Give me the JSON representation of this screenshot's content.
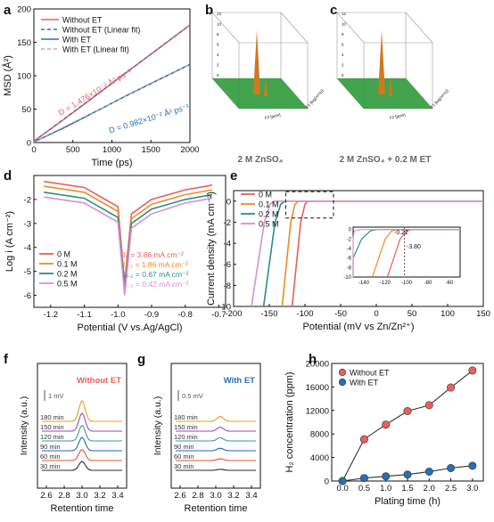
{
  "panel_labels": [
    "a",
    "b",
    "c",
    "d",
    "e",
    "f",
    "g",
    "h"
  ],
  "colors": {
    "red": "#e8605e",
    "blue": "#2a6fb0",
    "orange": "#ee8a2a",
    "teal": "#2f8a8a",
    "pink": "#d493cf",
    "green": "#2e9a3a",
    "peak": "#d0781e",
    "series_f": [
      "#2b2b2b",
      "#e0503a",
      "#2a64b0",
      "#3aa07a",
      "#9a4ab0",
      "#e0a020"
    ]
  },
  "chart_data": [
    {
      "panel": "a",
      "type": "line",
      "xlabel": "Time (ps)",
      "ylabel": "MSD (Å²)",
      "xlim": [
        0,
        2000
      ],
      "ylim": [
        0,
        200
      ],
      "xticks": [
        "0",
        "500",
        "1000",
        "1500",
        "2000"
      ],
      "yticks": [
        "0",
        "50",
        "100",
        "150",
        "200"
      ],
      "legend": [
        "Without ET",
        "Without ET (Linear fit)",
        "With ET",
        "With ET (Linear fit)"
      ],
      "annotations": [
        "D = 1.476×10⁻² Å² ps⁻¹",
        "D = 0.982×10⁻² Å² ps⁻¹"
      ],
      "series": [
        {
          "name": "Without ET",
          "x": [
            0,
            400,
            800,
            1200,
            1600,
            2000
          ],
          "y": [
            2,
            36,
            71,
            106,
            141,
            176
          ]
        },
        {
          "name": "With ET",
          "x": [
            0,
            400,
            800,
            1200,
            1600,
            2000
          ],
          "y": [
            1,
            23,
            47,
            71,
            94,
            117
          ]
        }
      ]
    },
    {
      "panel": "b",
      "type": "surface",
      "caption": "2 M ZnSO₄",
      "axes": [
        "F2 [ppm]",
        "F1 [log(m²/s)]"
      ],
      "z_ticks": [
        "0",
        "2",
        "4",
        "6",
        "8",
        "10",
        "12"
      ],
      "f2_ticks": [
        "10",
        "5",
        "0",
        "-5"
      ],
      "f1_ticks": [
        "-9",
        "-9.5",
        "-10",
        "-10.5",
        "-11"
      ]
    },
    {
      "panel": "c",
      "type": "surface",
      "caption": "2 M ZnSO₄ + 0.2 M ET",
      "axes": [
        "F2 [ppm]",
        "F1 [log(m²/s)]"
      ],
      "z_ticks": [
        "0",
        "2",
        "4",
        "6",
        "8",
        "10",
        "12"
      ],
      "f2_ticks": [
        "10",
        "5",
        "0",
        "-5",
        "-10"
      ],
      "f1_ticks": [
        "-9",
        "-9.5",
        "-10",
        "-10.5",
        "-11"
      ]
    },
    {
      "panel": "d",
      "type": "line",
      "xlabel": "Potential (V vs.Ag/AgCl)",
      "ylabel": "Log i (A cm⁻²)",
      "xlim": [
        -1.25,
        -0.68
      ],
      "ylim": [
        -6.5,
        -1.0
      ],
      "xticks": [
        "-1.2",
        "-1.1",
        "-1.0",
        "-0.9",
        "-0.8",
        "-0.7"
      ],
      "yticks": [
        "-2",
        "-3",
        "-4",
        "-5",
        "-6"
      ],
      "legend": [
        "0 M",
        "0.1 M",
        "0.2 M",
        "0.5 M"
      ],
      "annotations": [
        "I₀ = 3.86 mA cm⁻²",
        "I₀.₁ = 1.86 mA cm⁻²",
        "I₀.₂ = 0.67 mA cm⁻²",
        "I₀.₅ = 0.42 mA cm⁻²"
      ],
      "series": [
        {
          "name": "0 M",
          "x": [
            -1.22,
            -1.1,
            -1.0,
            -0.98,
            -0.96,
            -0.9,
            -0.8,
            -0.72
          ],
          "y": [
            -1.25,
            -1.5,
            -2.3,
            -5.5,
            -2.6,
            -2.0,
            -1.6,
            -1.4
          ]
        },
        {
          "name": "0.1 M",
          "x": [
            -1.22,
            -1.1,
            -1.0,
            -0.98,
            -0.96,
            -0.9,
            -0.8,
            -0.72
          ],
          "y": [
            -1.45,
            -1.7,
            -2.5,
            -5.7,
            -2.8,
            -2.2,
            -1.8,
            -1.6
          ]
        },
        {
          "name": "0.2 M",
          "x": [
            -1.22,
            -1.1,
            -1.0,
            -0.98,
            -0.96,
            -0.9,
            -0.8,
            -0.72
          ],
          "y": [
            -1.7,
            -1.95,
            -2.75,
            -5.8,
            -3.0,
            -2.4,
            -2.0,
            -1.8
          ]
        },
        {
          "name": "0.5 M",
          "x": [
            -1.22,
            -1.1,
            -1.0,
            -0.98,
            -0.96,
            -0.9,
            -0.8,
            -0.72
          ],
          "y": [
            -1.9,
            -2.15,
            -2.95,
            -6.0,
            -3.2,
            -2.6,
            -2.15,
            -1.95
          ]
        }
      ]
    },
    {
      "panel": "e",
      "type": "line",
      "xlabel": "Potential (mV vs Zn/Zn²⁺)",
      "ylabel": "Current density (mA cm⁻²)",
      "xlim": [
        -200,
        150
      ],
      "ylim": [
        -10,
        1
      ],
      "xticks": [
        "-200",
        "-150",
        "-100",
        "-50",
        "0",
        "50",
        "100",
        "150"
      ],
      "yticks": [
        "0",
        "-2",
        "-4",
        "-6",
        "-8",
        "-10"
      ],
      "legend": [
        "0 M",
        "0.1 M",
        "0.2 M",
        "0.5 M"
      ],
      "inset": {
        "xticks": [
          "-140",
          "-120",
          "-100",
          "-80",
          "-60"
        ],
        "yticks": [
          "0",
          "-2",
          "-4",
          "-6",
          "-8",
          "-10"
        ],
        "annotations": [
          "-0.22",
          "-3.80"
        ]
      },
      "series": [
        {
          "name": "0 M",
          "x": [
            -118,
            -112,
            -106,
            -100,
            -96,
            150
          ],
          "y": [
            -10,
            -6,
            -2,
            -0.3,
            0,
            0
          ]
        },
        {
          "name": "0.1 M",
          "x": [
            -132,
            -126,
            -120,
            -114,
            -109,
            150
          ],
          "y": [
            -10,
            -6,
            -2,
            -0.3,
            0,
            0
          ]
        },
        {
          "name": "0.2 M",
          "x": [
            -158,
            -150,
            -142,
            -134,
            -128,
            150
          ],
          "y": [
            -10,
            -6,
            -2,
            -0.3,
            0,
            0
          ]
        },
        {
          "name": "0.5 M",
          "x": [
            -175,
            -166,
            -157,
            -149,
            -143,
            150
          ],
          "y": [
            -10,
            -6,
            -2,
            -0.3,
            0,
            0
          ]
        }
      ]
    },
    {
      "panel": "f",
      "type": "line",
      "title": "Without ET",
      "xlabel": "Retention time",
      "ylabel": "Intensity (a.u.)",
      "xlim": [
        2.5,
        3.5
      ],
      "xticks": [
        "2.6",
        "2.8",
        "3.0",
        "3.2",
        "3.4"
      ],
      "scale_bar": "1 mV",
      "series_names": [
        "30 min",
        "60 min",
        "90 min",
        "120 min",
        "150 min",
        "180 min"
      ],
      "peak_center": 3.0,
      "peak_heights": [
        1.0,
        1.25,
        1.5,
        1.75,
        2.0,
        2.3
      ]
    },
    {
      "panel": "g",
      "type": "line",
      "title": "With ET",
      "xlabel": "Retention time",
      "ylabel": "Intensity (a.u.)",
      "xlim": [
        2.5,
        3.5
      ],
      "xticks": [
        "2.6",
        "2.8",
        "3.0",
        "3.2",
        "3.4"
      ],
      "scale_bar": "0.5 mV",
      "series_names": [
        "30 min",
        "60 min",
        "90 min",
        "120 min",
        "150 min",
        "180 min"
      ],
      "peak_center": 3.05,
      "peak_heights": [
        0.12,
        0.2,
        0.28,
        0.36,
        0.44,
        0.55
      ]
    },
    {
      "panel": "h",
      "type": "line",
      "xlabel": "Plating time (h)",
      "ylabel": "H₂ concentration (ppm)",
      "xlim": [
        -0.25,
        3.25
      ],
      "ylim": [
        0,
        20000
      ],
      "xticks": [
        "0.0",
        "0.5",
        "1.0",
        "1.5",
        "2.0",
        "2.5",
        "3.0"
      ],
      "yticks": [
        "0",
        "4000",
        "8000",
        "12000",
        "16000",
        "20000"
      ],
      "legend": [
        "Without ET",
        "With ET"
      ],
      "series": [
        {
          "name": "Without ET",
          "x": [
            0,
            0.5,
            1.0,
            1.5,
            2.0,
            2.5,
            3.0
          ],
          "y": [
            0,
            7100,
            9600,
            11900,
            12900,
            15900,
            18800
          ]
        },
        {
          "name": "With ET",
          "x": [
            0,
            0.5,
            1.0,
            1.5,
            2.0,
            2.5,
            3.0
          ],
          "y": [
            0,
            500,
            800,
            1100,
            1600,
            2200,
            2600
          ]
        }
      ]
    }
  ]
}
